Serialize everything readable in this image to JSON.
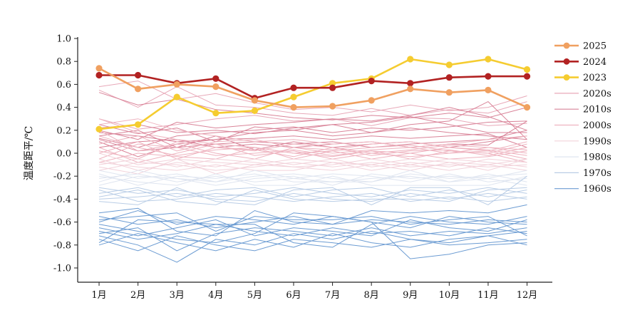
{
  "chart_data": {
    "type": "line",
    "title": "",
    "xlabel": "",
    "ylabel": "温度距平/℃",
    "ylim": [
      -1.0,
      1.0
    ],
    "yticks": [
      "-1.0",
      "-0.8",
      "-0.6",
      "-0.4",
      "-0.2",
      "0.0",
      "0.2",
      "0.4",
      "0.6",
      "0.8",
      "1.0"
    ],
    "categories": [
      "1月",
      "2月",
      "3月",
      "4月",
      "5月",
      "6月",
      "7月",
      "8月",
      "9月",
      "10月",
      "11月",
      "12月"
    ],
    "grid": false,
    "legend_position": "right",
    "series": [
      {
        "name": "2025",
        "color": "#f0a060",
        "markers": true,
        "values": [
          0.74,
          0.56,
          0.6,
          0.58,
          0.46,
          0.4,
          0.41,
          0.46,
          0.56,
          0.53,
          0.55,
          0.4
        ]
      },
      {
        "name": "2024",
        "color": "#b22222",
        "markers": true,
        "values": [
          0.68,
          0.68,
          0.61,
          0.65,
          0.48,
          0.57,
          0.57,
          0.63,
          0.61,
          0.66,
          0.67,
          0.67
        ]
      },
      {
        "name": "2023",
        "color": "#f5cc30",
        "markers": true,
        "values": [
          0.21,
          0.25,
          0.49,
          0.35,
          0.37,
          0.49,
          0.61,
          0.65,
          0.82,
          0.77,
          0.82,
          0.73
        ]
      }
    ],
    "decade_groups": [
      {
        "name": "2020s",
        "color": "#e8a8b8",
        "lines": [
          [
            0.58,
            0.63,
            0.47,
            0.52,
            0.44,
            0.38,
            0.4,
            0.36,
            0.42,
            0.37,
            0.4,
            0.5
          ],
          [
            0.55,
            0.4,
            0.58,
            0.42,
            0.4,
            0.35,
            0.33,
            0.39,
            0.33,
            0.38,
            0.35,
            0.45
          ],
          [
            0.3,
            0.21,
            0.25,
            0.3,
            0.33,
            0.28,
            0.3,
            0.24,
            0.31,
            0.3,
            0.24,
            0.26
          ]
        ]
      },
      {
        "name": "2010s",
        "color": "#d98398",
        "lines": [
          [
            0.53,
            0.42,
            0.47,
            0.38,
            0.35,
            0.31,
            0.29,
            0.33,
            0.31,
            0.35,
            0.31,
            0.4
          ],
          [
            0.2,
            0.12,
            0.27,
            0.22,
            0.25,
            0.27,
            0.3,
            0.28,
            0.33,
            0.4,
            0.32,
            0.2
          ],
          [
            0.25,
            0.17,
            0.22,
            0.1,
            0.23,
            0.2,
            0.25,
            0.27,
            0.32,
            0.25,
            0.18,
            0.18
          ],
          [
            0.13,
            0.05,
            0.15,
            0.18,
            0.2,
            0.23,
            0.18,
            0.22,
            0.2,
            0.23,
            0.27,
            0.28
          ],
          [
            0.1,
            -0.03,
            0.08,
            0.12,
            0.18,
            0.2,
            0.15,
            0.18,
            0.22,
            0.18,
            0.15,
            0.12
          ],
          [
            0.22,
            0.25,
            0.18,
            0.2,
            0.17,
            0.22,
            0.25,
            0.18,
            0.25,
            0.28,
            0.45,
            0.12
          ],
          [
            0.18,
            0.15,
            0.1,
            0.12,
            0.13,
            0.15,
            0.12,
            0.15,
            0.13,
            0.15,
            0.17,
            0.05
          ],
          [
            0.15,
            0.2,
            0.05,
            0.08,
            0.1,
            0.08,
            0.1,
            0.05,
            0.08,
            0.1,
            0.12,
            0.2
          ],
          [
            0.05,
            0.1,
            0.12,
            0.05,
            0.08,
            0.05,
            0.08,
            0.1,
            0.05,
            0.08,
            0.07,
            0.28
          ],
          [
            0.12,
            0.02,
            0.05,
            0.15,
            0.03,
            0.1,
            0.05,
            0.08,
            0.1,
            0.05,
            0.1,
            0.15
          ]
        ]
      },
      {
        "name": "2000s",
        "color": "#eeb3bf",
        "lines": [
          [
            0.25,
            0.3,
            0.2,
            0.15,
            0.1,
            0.12,
            0.08,
            0.1,
            0.05,
            0.08,
            0.12,
            0.15
          ],
          [
            0.08,
            0.15,
            0.02,
            0.1,
            0.12,
            0.05,
            0.03,
            0.08,
            0.1,
            0.05,
            0.02,
            0.1
          ],
          [
            0.02,
            -0.05,
            0.1,
            0.05,
            0.02,
            0.08,
            0.05,
            0.0,
            0.03,
            0.07,
            0.05,
            0.03
          ],
          [
            0.15,
            0.05,
            -0.02,
            0.03,
            0.05,
            0.0,
            0.02,
            0.05,
            0.07,
            0.02,
            0.0,
            0.08
          ],
          [
            -0.05,
            0.08,
            0.05,
            -0.02,
            0.0,
            0.03,
            -0.02,
            0.02,
            0.0,
            0.05,
            0.03,
            -0.02
          ],
          [
            0.2,
            0.02,
            0.08,
            0.0,
            -0.05,
            0.05,
            0.0,
            0.03,
            0.05,
            0.0,
            0.05,
            0.0
          ],
          [
            0.0,
            0.1,
            -0.05,
            0.05,
            0.03,
            -0.03,
            0.05,
            -0.02,
            0.02,
            0.03,
            -0.02,
            0.05
          ],
          [
            0.05,
            -0.08,
            0.0,
            0.08,
            -0.02,
            0.02,
            -0.05,
            0.0,
            -0.03,
            0.0,
            0.02,
            -0.05
          ],
          [
            -0.08,
            0.0,
            -0.03,
            -0.05,
            0.05,
            -0.05,
            0.02,
            -0.05,
            0.0,
            -0.05,
            -0.03,
            0.02
          ],
          [
            0.3,
            0.18,
            0.12,
            0.08,
            0.05,
            0.0,
            -0.03,
            0.02,
            -0.05,
            0.02,
            0.0,
            -0.08
          ]
        ]
      },
      {
        "name": "1990s",
        "color": "#f2d2da",
        "lines": [
          [
            0.0,
            -0.1,
            -0.05,
            -0.08,
            -0.1,
            -0.05,
            -0.08,
            -0.1,
            -0.05,
            -0.08,
            -0.1,
            -0.05
          ],
          [
            -0.1,
            -0.05,
            -0.12,
            -0.05,
            -0.08,
            -0.12,
            -0.1,
            -0.05,
            -0.1,
            -0.05,
            -0.08,
            -0.12
          ],
          [
            -0.05,
            -0.15,
            -0.08,
            -0.12,
            -0.05,
            -0.1,
            -0.05,
            -0.12,
            -0.08,
            -0.12,
            -0.05,
            -0.08
          ],
          [
            -0.15,
            -0.08,
            -0.1,
            -0.15,
            -0.12,
            -0.08,
            -0.12,
            -0.08,
            -0.12,
            -0.1,
            -0.12,
            -0.1
          ],
          [
            -0.08,
            -0.12,
            -0.15,
            -0.1,
            -0.15,
            -0.15,
            -0.08,
            -0.15,
            -0.1,
            -0.15,
            -0.1,
            -0.15
          ],
          [
            -0.12,
            -0.18,
            -0.05,
            -0.18,
            -0.1,
            -0.12,
            -0.15,
            -0.1,
            -0.15,
            -0.08,
            -0.15,
            -0.05
          ]
        ]
      },
      {
        "name": "1980s",
        "color": "#dfe5f0",
        "lines": [
          [
            -0.15,
            -0.22,
            -0.18,
            -0.25,
            -0.2,
            -0.18,
            -0.22,
            -0.25,
            -0.18,
            -0.22,
            -0.2,
            -0.18
          ],
          [
            -0.22,
            -0.18,
            -0.25,
            -0.2,
            -0.25,
            -0.22,
            -0.18,
            -0.2,
            -0.25,
            -0.18,
            -0.25,
            -0.22
          ],
          [
            -0.18,
            -0.28,
            -0.2,
            -0.22,
            -0.18,
            -0.25,
            -0.25,
            -0.22,
            -0.2,
            -0.25,
            -0.18,
            -0.25
          ],
          [
            -0.28,
            -0.2,
            -0.22,
            -0.28,
            -0.22,
            -0.2,
            -0.28,
            -0.18,
            -0.22,
            -0.2,
            -0.22,
            -0.28
          ],
          [
            -0.2,
            -0.25,
            -0.28,
            -0.18,
            -0.28,
            -0.28,
            -0.2,
            -0.28,
            -0.28,
            -0.28,
            -0.28,
            -0.2
          ],
          [
            -0.25,
            -0.15,
            -0.22,
            -0.25,
            -0.15,
            -0.22,
            -0.25,
            -0.25,
            -0.15,
            -0.25,
            -0.22,
            -0.15
          ]
        ]
      },
      {
        "name": "1970s",
        "color": "#b9cde6",
        "lines": [
          [
            -0.3,
            -0.35,
            -0.32,
            -0.38,
            -0.35,
            -0.3,
            -0.35,
            -0.38,
            -0.32,
            -0.35,
            -0.3,
            -0.35
          ],
          [
            -0.35,
            -0.3,
            -0.38,
            -0.32,
            -0.3,
            -0.38,
            -0.32,
            -0.3,
            -0.38,
            -0.32,
            -0.38,
            -0.32
          ],
          [
            -0.4,
            -0.38,
            -0.35,
            -0.4,
            -0.42,
            -0.35,
            -0.4,
            -0.42,
            -0.35,
            -0.4,
            -0.35,
            -0.4
          ],
          [
            -0.32,
            -0.42,
            -0.4,
            -0.35,
            -0.38,
            -0.42,
            -0.38,
            -0.35,
            -0.42,
            -0.38,
            -0.42,
            -0.38
          ],
          [
            -0.38,
            -0.32,
            -0.42,
            -0.45,
            -0.32,
            -0.4,
            -0.42,
            -0.4,
            -0.4,
            -0.42,
            -0.32,
            -0.3
          ],
          [
            -0.42,
            -0.45,
            -0.3,
            -0.42,
            -0.45,
            -0.32,
            -0.3,
            -0.45,
            -0.3,
            -0.3,
            -0.45,
            -0.2
          ]
        ]
      },
      {
        "name": "1960s",
        "color": "#6b9bd2",
        "lines": [
          [
            -0.55,
            -0.62,
            -0.58,
            -0.65,
            -0.6,
            -0.55,
            -0.62,
            -0.58,
            -0.6,
            -0.62,
            -0.58,
            -0.6
          ],
          [
            -0.68,
            -0.75,
            -0.7,
            -0.62,
            -0.68,
            -0.72,
            -0.65,
            -0.7,
            -0.68,
            -0.72,
            -0.65,
            -0.7
          ],
          [
            -0.75,
            -0.85,
            -0.72,
            -0.8,
            -0.85,
            -0.75,
            -0.78,
            -0.82,
            -0.75,
            -0.8,
            -0.78,
            -0.75
          ],
          [
            -0.6,
            -0.5,
            -0.62,
            -0.55,
            -0.58,
            -0.62,
            -0.55,
            -0.6,
            -0.65,
            -0.55,
            -0.6,
            -0.62
          ],
          [
            -0.7,
            -0.65,
            -0.85,
            -0.7,
            -0.65,
            -0.68,
            -0.72,
            -0.65,
            -0.72,
            -0.68,
            -0.7,
            -0.65
          ],
          [
            -0.8,
            -0.7,
            -0.78,
            -0.85,
            -0.75,
            -0.82,
            -0.7,
            -0.78,
            -0.82,
            -0.75,
            -0.72,
            -0.8
          ],
          [
            -0.65,
            -0.72,
            -0.65,
            -0.58,
            -0.72,
            -0.65,
            -0.68,
            -0.72,
            -0.58,
            -0.65,
            -0.68,
            -0.58
          ],
          [
            -0.72,
            -0.8,
            -0.95,
            -0.75,
            -0.8,
            -0.7,
            -0.75,
            -0.68,
            -0.75,
            -0.78,
            -0.72,
            -0.68
          ],
          [
            -0.58,
            -0.55,
            -0.52,
            -0.68,
            -0.55,
            -0.58,
            -0.58,
            -0.55,
            -0.62,
            -0.58,
            -0.55,
            -0.72
          ],
          [
            -0.78,
            -0.58,
            -0.6,
            -0.62,
            -0.62,
            -0.78,
            -0.82,
            -0.62,
            -0.55,
            -0.6,
            -0.62,
            -0.55
          ],
          [
            -0.52,
            -0.48,
            -0.68,
            -0.72,
            -0.5,
            -0.6,
            -0.62,
            -0.5,
            -0.52,
            -0.5,
            -0.52,
            -0.45
          ],
          [
            -0.62,
            -0.68,
            -0.75,
            -0.78,
            -0.7,
            -0.52,
            -0.55,
            -0.6,
            -0.92,
            -0.88,
            -0.8,
            -0.78
          ]
        ]
      }
    ]
  }
}
